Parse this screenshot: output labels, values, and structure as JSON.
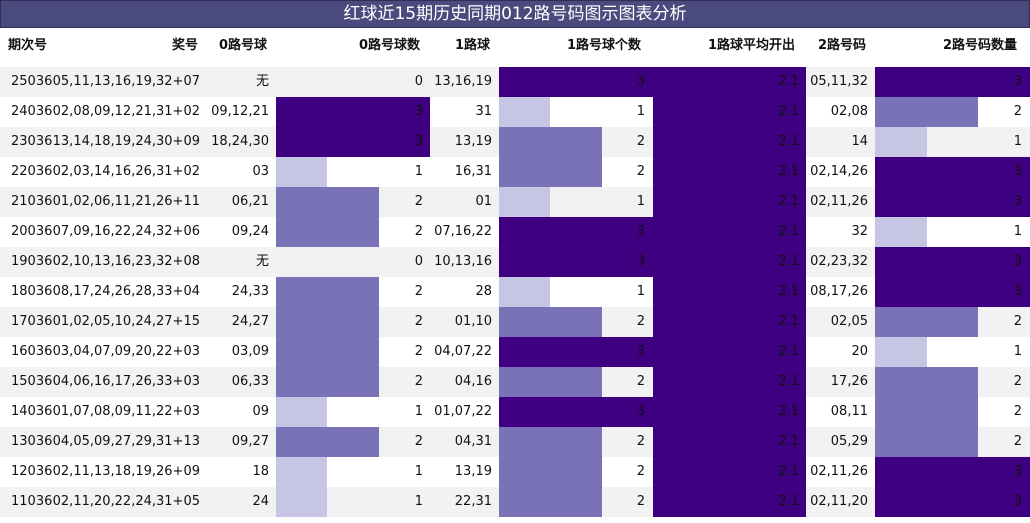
{
  "title": "红球近15期历史同期012路号码图示图表分析",
  "headers": {
    "period": "期次号",
    "prize": "奖号",
    "r0_balls": "0路号球",
    "r0_count": "0路号球数",
    "r1_balls": "1路球",
    "r1_count": "1路号球个数",
    "r1_avg": "1路球平均开出",
    "r2_balls": "2路号码",
    "r2_count": "2路号码数量"
  },
  "colors": {
    "dark": "#3e0081",
    "mid": "#7a72b7",
    "light": "#c6c5e3",
    "header_bg": "#4b4a7e"
  },
  "chart_data": {
    "type": "table",
    "title": "红球近15期历史同期012路号码图示图表分析",
    "count_scale_max": 3,
    "columns": [
      "期次号",
      "奖号",
      "0路号球",
      "0路号球数",
      "1路球",
      "1路号球个数",
      "1路球平均开出",
      "2路号码",
      "2路号码数量"
    ],
    "rows": [
      {
        "period": "25036",
        "prize": "05,11,13,16,19,32+07",
        "r0": "无",
        "c0": 0,
        "r1": "13,16,19",
        "c1": 3,
        "avg": "2.1",
        "r2": "05,11,32",
        "c2": 3
      },
      {
        "period": "24036",
        "prize": "02,08,09,12,21,31+02",
        "r0": "09,12,21",
        "c0": 3,
        "r1": "31",
        "c1": 1,
        "avg": "2.1",
        "r2": "02,08",
        "c2": 2
      },
      {
        "period": "23036",
        "prize": "13,14,18,19,24,30+09",
        "r0": "18,24,30",
        "c0": 3,
        "r1": "13,19",
        "c1": 2,
        "avg": "2.1",
        "r2": "14",
        "c2": 1
      },
      {
        "period": "22036",
        "prize": "02,03,14,16,26,31+02",
        "r0": "03",
        "c0": 1,
        "r1": "16,31",
        "c1": 2,
        "avg": "2.1",
        "r2": "02,14,26",
        "c2": 3
      },
      {
        "period": "21036",
        "prize": "01,02,06,11,21,26+11",
        "r0": "06,21",
        "c0": 2,
        "r1": "01",
        "c1": 1,
        "avg": "2.1",
        "r2": "02,11,26",
        "c2": 3
      },
      {
        "period": "20036",
        "prize": "07,09,16,22,24,32+06",
        "r0": "09,24",
        "c0": 2,
        "r1": "07,16,22",
        "c1": 3,
        "avg": "2.1",
        "r2": "32",
        "c2": 1
      },
      {
        "period": "19036",
        "prize": "02,10,13,16,23,32+08",
        "r0": "无",
        "c0": 0,
        "r1": "10,13,16",
        "c1": 3,
        "avg": "2.1",
        "r2": "02,23,32",
        "c2": 3
      },
      {
        "period": "18036",
        "prize": "08,17,24,26,28,33+04",
        "r0": "24,33",
        "c0": 2,
        "r1": "28",
        "c1": 1,
        "avg": "2.1",
        "r2": "08,17,26",
        "c2": 3
      },
      {
        "period": "17036",
        "prize": "01,02,05,10,24,27+15",
        "r0": "24,27",
        "c0": 2,
        "r1": "01,10",
        "c1": 2,
        "avg": "2.1",
        "r2": "02,05",
        "c2": 2
      },
      {
        "period": "16036",
        "prize": "03,04,07,09,20,22+03",
        "r0": "03,09",
        "c0": 2,
        "r1": "04,07,22",
        "c1": 3,
        "avg": "2.1",
        "r2": "20",
        "c2": 1
      },
      {
        "period": "15036",
        "prize": "04,06,16,17,26,33+03",
        "r0": "06,33",
        "c0": 2,
        "r1": "04,16",
        "c1": 2,
        "avg": "2.1",
        "r2": "17,26",
        "c2": 2
      },
      {
        "period": "14036",
        "prize": "01,07,08,09,11,22+03",
        "r0": "09",
        "c0": 1,
        "r1": "01,07,22",
        "c1": 3,
        "avg": "2.1",
        "r2": "08,11",
        "c2": 2
      },
      {
        "period": "13036",
        "prize": "04,05,09,27,29,31+13",
        "r0": "09,27",
        "c0": 2,
        "r1": "04,31",
        "c1": 2,
        "avg": "2.1",
        "r2": "05,29",
        "c2": 2
      },
      {
        "period": "12036",
        "prize": "02,11,13,18,19,26+09",
        "r0": "18",
        "c0": 1,
        "r1": "13,19",
        "c1": 2,
        "avg": "2.1",
        "r2": "02,11,26",
        "c2": 3
      },
      {
        "period": "11036",
        "prize": "02,11,20,22,24,31+05",
        "r0": "24",
        "c0": 1,
        "r1": "22,31",
        "c1": 2,
        "avg": "2.1",
        "r2": "02,11,20",
        "c2": 3
      }
    ]
  }
}
